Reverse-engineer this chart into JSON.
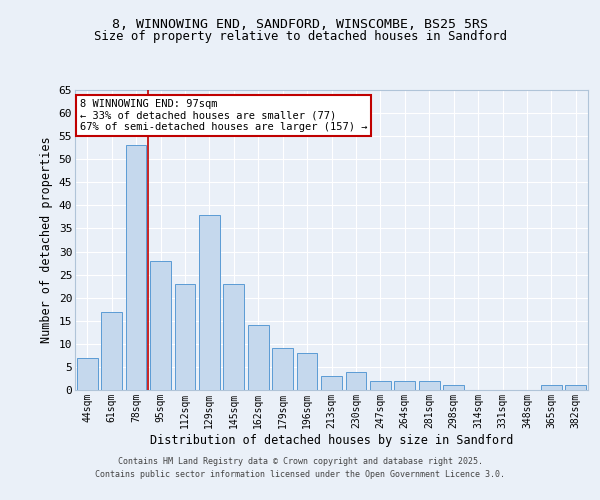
{
  "title1": "8, WINNOWING END, SANDFORD, WINSCOMBE, BS25 5RS",
  "title2": "Size of property relative to detached houses in Sandford",
  "xlabel": "Distribution of detached houses by size in Sandford",
  "ylabel": "Number of detached properties",
  "categories": [
    "44sqm",
    "61sqm",
    "78sqm",
    "95sqm",
    "112sqm",
    "129sqm",
    "145sqm",
    "162sqm",
    "179sqm",
    "196sqm",
    "213sqm",
    "230sqm",
    "247sqm",
    "264sqm",
    "281sqm",
    "298sqm",
    "314sqm",
    "331sqm",
    "348sqm",
    "365sqm",
    "382sqm"
  ],
  "values": [
    7,
    17,
    53,
    28,
    23,
    38,
    23,
    14,
    9,
    8,
    3,
    4,
    2,
    2,
    2,
    1,
    0,
    0,
    0,
    1,
    1
  ],
  "bar_color": "#c5d8ed",
  "bar_edge_color": "#5b9bd5",
  "bar_width": 0.85,
  "property_line_x": 2.5,
  "property_line_color": "#c00000",
  "annotation_text": "8 WINNOWING END: 97sqm\n← 33% of detached houses are smaller (77)\n67% of semi-detached houses are larger (157) →",
  "annotation_box_color": "#ffffff",
  "annotation_box_edge": "#c00000",
  "ylim": [
    0,
    65
  ],
  "yticks": [
    0,
    5,
    10,
    15,
    20,
    25,
    30,
    35,
    40,
    45,
    50,
    55,
    60,
    65
  ],
  "background_color": "#eaf0f8",
  "grid_color": "#ffffff",
  "fig_background": "#eaf0f8",
  "footer_line1": "Contains HM Land Registry data © Crown copyright and database right 2025.",
  "footer_line2": "Contains public sector information licensed under the Open Government Licence 3.0."
}
